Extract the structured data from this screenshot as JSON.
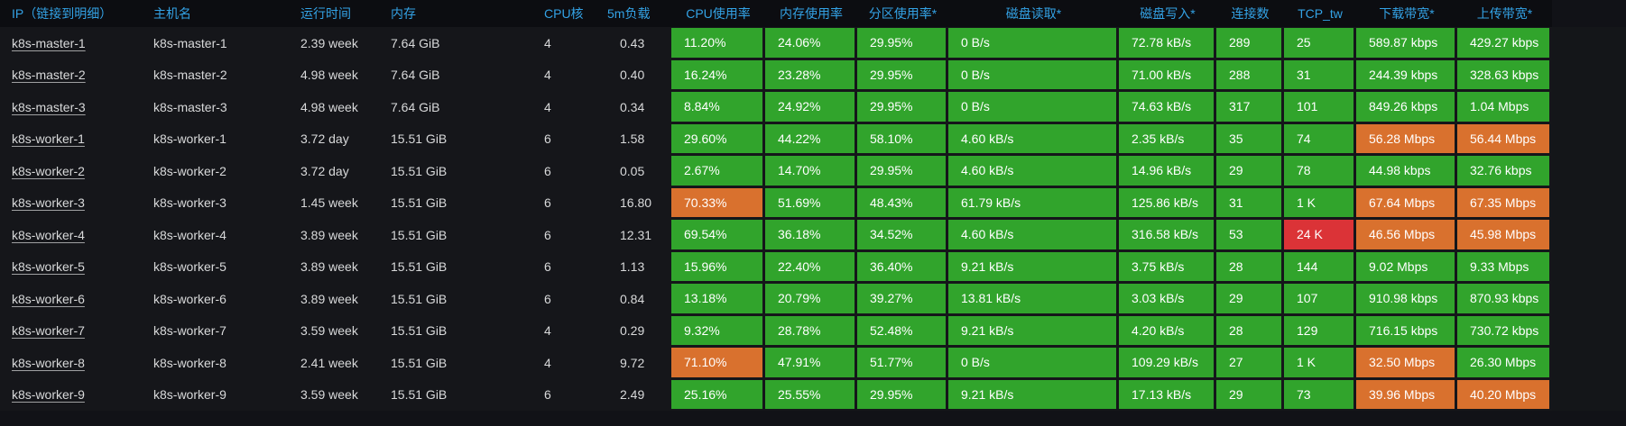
{
  "colors": {
    "green": "#31a42c",
    "orange": "#d9712e",
    "red": "#db3337",
    "header_text": "#33a2e5",
    "row_text": "#d8d9da",
    "metric_text": "#ffffff",
    "header_bg": "#0c0d11",
    "panel_bg": "#111217",
    "row_bg": "#15161a"
  },
  "table": {
    "headers": [
      {
        "id": "ip",
        "label": "IP（链接到明细）"
      },
      {
        "id": "hostname",
        "label": "主机名"
      },
      {
        "id": "uptime",
        "label": "运行时间"
      },
      {
        "id": "memory",
        "label": "内存"
      },
      {
        "id": "cores",
        "label": "CPU核"
      },
      {
        "id": "load",
        "label": "5m负载"
      },
      {
        "id": "cpu-usage",
        "label": "CPU使用率"
      },
      {
        "id": "mem-usage",
        "label": "内存使用率"
      },
      {
        "id": "part-usage",
        "label": "分区使用率*"
      },
      {
        "id": "disk-read",
        "label": "磁盘读取*"
      },
      {
        "id": "disk-write",
        "label": "磁盘写入*"
      },
      {
        "id": "connections",
        "label": "连接数"
      },
      {
        "id": "tcp-tw",
        "label": "TCP_tw"
      },
      {
        "id": "down-bw",
        "label": "下载带宽*"
      },
      {
        "id": "up-bw",
        "label": "上传带宽*"
      }
    ],
    "rows": [
      {
        "ip": "k8s-master-1",
        "hostname": "k8s-master-1",
        "uptime": "2.39 week",
        "memory": "7.64 GiB",
        "cores": "4",
        "load": "0.43",
        "cells": [
          {
            "v": "11.20%",
            "c": "green"
          },
          {
            "v": "24.06%",
            "c": "green"
          },
          {
            "v": "29.95%",
            "c": "green"
          },
          {
            "v": "0 B/s",
            "c": "green"
          },
          {
            "v": "72.78 kB/s",
            "c": "green"
          },
          {
            "v": "289",
            "c": "green"
          },
          {
            "v": "25",
            "c": "green"
          },
          {
            "v": "589.87 kbps",
            "c": "green"
          },
          {
            "v": "429.27 kbps",
            "c": "green"
          }
        ]
      },
      {
        "ip": "k8s-master-2",
        "hostname": "k8s-master-2",
        "uptime": "4.98 week",
        "memory": "7.64 GiB",
        "cores": "4",
        "load": "0.40",
        "cells": [
          {
            "v": "16.24%",
            "c": "green"
          },
          {
            "v": "23.28%",
            "c": "green"
          },
          {
            "v": "29.95%",
            "c": "green"
          },
          {
            "v": "0 B/s",
            "c": "green"
          },
          {
            "v": "71.00 kB/s",
            "c": "green"
          },
          {
            "v": "288",
            "c": "green"
          },
          {
            "v": "31",
            "c": "green"
          },
          {
            "v": "244.39 kbps",
            "c": "green"
          },
          {
            "v": "328.63 kbps",
            "c": "green"
          }
        ]
      },
      {
        "ip": "k8s-master-3",
        "hostname": "k8s-master-3",
        "uptime": "4.98 week",
        "memory": "7.64 GiB",
        "cores": "4",
        "load": "0.34",
        "cells": [
          {
            "v": "8.84%",
            "c": "green"
          },
          {
            "v": "24.92%",
            "c": "green"
          },
          {
            "v": "29.95%",
            "c": "green"
          },
          {
            "v": "0 B/s",
            "c": "green"
          },
          {
            "v": "74.63 kB/s",
            "c": "green"
          },
          {
            "v": "317",
            "c": "green"
          },
          {
            "v": "101",
            "c": "green"
          },
          {
            "v": "849.26 kbps",
            "c": "green"
          },
          {
            "v": "1.04 Mbps",
            "c": "green"
          }
        ]
      },
      {
        "ip": "k8s-worker-1",
        "hostname": "k8s-worker-1",
        "uptime": "3.72 day",
        "memory": "15.51 GiB",
        "cores": "6",
        "load": "1.58",
        "cells": [
          {
            "v": "29.60%",
            "c": "green"
          },
          {
            "v": "44.22%",
            "c": "green"
          },
          {
            "v": "58.10%",
            "c": "green"
          },
          {
            "v": "4.60 kB/s",
            "c": "green"
          },
          {
            "v": "2.35 kB/s",
            "c": "green"
          },
          {
            "v": "35",
            "c": "green"
          },
          {
            "v": "74",
            "c": "green"
          },
          {
            "v": "56.28 Mbps",
            "c": "orange"
          },
          {
            "v": "56.44 Mbps",
            "c": "orange"
          }
        ]
      },
      {
        "ip": "k8s-worker-2",
        "hostname": "k8s-worker-2",
        "uptime": "3.72 day",
        "memory": "15.51 GiB",
        "cores": "6",
        "load": "0.05",
        "cells": [
          {
            "v": "2.67%",
            "c": "green"
          },
          {
            "v": "14.70%",
            "c": "green"
          },
          {
            "v": "29.95%",
            "c": "green"
          },
          {
            "v": "4.60 kB/s",
            "c": "green"
          },
          {
            "v": "14.96 kB/s",
            "c": "green"
          },
          {
            "v": "29",
            "c": "green"
          },
          {
            "v": "78",
            "c": "green"
          },
          {
            "v": "44.98 kbps",
            "c": "green"
          },
          {
            "v": "32.76 kbps",
            "c": "green"
          }
        ]
      },
      {
        "ip": "k8s-worker-3",
        "hostname": "k8s-worker-3",
        "uptime": "1.45 week",
        "memory": "15.51 GiB",
        "cores": "6",
        "load": "16.80",
        "cells": [
          {
            "v": "70.33%",
            "c": "orange"
          },
          {
            "v": "51.69%",
            "c": "green"
          },
          {
            "v": "48.43%",
            "c": "green"
          },
          {
            "v": "61.79 kB/s",
            "c": "green"
          },
          {
            "v": "125.86 kB/s",
            "c": "green"
          },
          {
            "v": "31",
            "c": "green"
          },
          {
            "v": "1 K",
            "c": "green"
          },
          {
            "v": "67.64 Mbps",
            "c": "orange"
          },
          {
            "v": "67.35 Mbps",
            "c": "orange"
          }
        ]
      },
      {
        "ip": "k8s-worker-4",
        "hostname": "k8s-worker-4",
        "uptime": "3.89 week",
        "memory": "15.51 GiB",
        "cores": "6",
        "load": "12.31",
        "cells": [
          {
            "v": "69.54%",
            "c": "green"
          },
          {
            "v": "36.18%",
            "c": "green"
          },
          {
            "v": "34.52%",
            "c": "green"
          },
          {
            "v": "4.60 kB/s",
            "c": "green"
          },
          {
            "v": "316.58 kB/s",
            "c": "green"
          },
          {
            "v": "53",
            "c": "green"
          },
          {
            "v": "24 K",
            "c": "red"
          },
          {
            "v": "46.56 Mbps",
            "c": "orange"
          },
          {
            "v": "45.98 Mbps",
            "c": "orange"
          }
        ]
      },
      {
        "ip": "k8s-worker-5",
        "hostname": "k8s-worker-5",
        "uptime": "3.89 week",
        "memory": "15.51 GiB",
        "cores": "6",
        "load": "1.13",
        "cells": [
          {
            "v": "15.96%",
            "c": "green"
          },
          {
            "v": "22.40%",
            "c": "green"
          },
          {
            "v": "36.40%",
            "c": "green"
          },
          {
            "v": "9.21 kB/s",
            "c": "green"
          },
          {
            "v": "3.75 kB/s",
            "c": "green"
          },
          {
            "v": "28",
            "c": "green"
          },
          {
            "v": "144",
            "c": "green"
          },
          {
            "v": "9.02 Mbps",
            "c": "green"
          },
          {
            "v": "9.33 Mbps",
            "c": "green"
          }
        ]
      },
      {
        "ip": "k8s-worker-6",
        "hostname": "k8s-worker-6",
        "uptime": "3.89 week",
        "memory": "15.51 GiB",
        "cores": "6",
        "load": "0.84",
        "cells": [
          {
            "v": "13.18%",
            "c": "green"
          },
          {
            "v": "20.79%",
            "c": "green"
          },
          {
            "v": "39.27%",
            "c": "green"
          },
          {
            "v": "13.81 kB/s",
            "c": "green"
          },
          {
            "v": "3.03 kB/s",
            "c": "green"
          },
          {
            "v": "29",
            "c": "green"
          },
          {
            "v": "107",
            "c": "green"
          },
          {
            "v": "910.98 kbps",
            "c": "green"
          },
          {
            "v": "870.93 kbps",
            "c": "green"
          }
        ]
      },
      {
        "ip": "k8s-worker-7",
        "hostname": "k8s-worker-7",
        "uptime": "3.59 week",
        "memory": "15.51 GiB",
        "cores": "4",
        "load": "0.29",
        "cells": [
          {
            "v": "9.32%",
            "c": "green"
          },
          {
            "v": "28.78%",
            "c": "green"
          },
          {
            "v": "52.48%",
            "c": "green"
          },
          {
            "v": "9.21 kB/s",
            "c": "green"
          },
          {
            "v": "4.20 kB/s",
            "c": "green"
          },
          {
            "v": "28",
            "c": "green"
          },
          {
            "v": "129",
            "c": "green"
          },
          {
            "v": "716.15 kbps",
            "c": "green"
          },
          {
            "v": "730.72 kbps",
            "c": "green"
          }
        ]
      },
      {
        "ip": "k8s-worker-8",
        "hostname": "k8s-worker-8",
        "uptime": "2.41 week",
        "memory": "15.51 GiB",
        "cores": "4",
        "load": "9.72",
        "cells": [
          {
            "v": "71.10%",
            "c": "orange"
          },
          {
            "v": "47.91%",
            "c": "green"
          },
          {
            "v": "51.77%",
            "c": "green"
          },
          {
            "v": "0 B/s",
            "c": "green"
          },
          {
            "v": "109.29 kB/s",
            "c": "green"
          },
          {
            "v": "27",
            "c": "green"
          },
          {
            "v": "1 K",
            "c": "green"
          },
          {
            "v": "32.50 Mbps",
            "c": "orange"
          },
          {
            "v": "26.30 Mbps",
            "c": "green"
          }
        ]
      },
      {
        "ip": "k8s-worker-9",
        "hostname": "k8s-worker-9",
        "uptime": "3.59 week",
        "memory": "15.51 GiB",
        "cores": "6",
        "load": "2.49",
        "cells": [
          {
            "v": "25.16%",
            "c": "green"
          },
          {
            "v": "25.55%",
            "c": "green"
          },
          {
            "v": "29.95%",
            "c": "green"
          },
          {
            "v": "9.21 kB/s",
            "c": "green"
          },
          {
            "v": "17.13 kB/s",
            "c": "green"
          },
          {
            "v": "29",
            "c": "green"
          },
          {
            "v": "73",
            "c": "green"
          },
          {
            "v": "39.96 Mbps",
            "c": "orange"
          },
          {
            "v": "40.20 Mbps",
            "c": "orange"
          }
        ]
      }
    ]
  }
}
